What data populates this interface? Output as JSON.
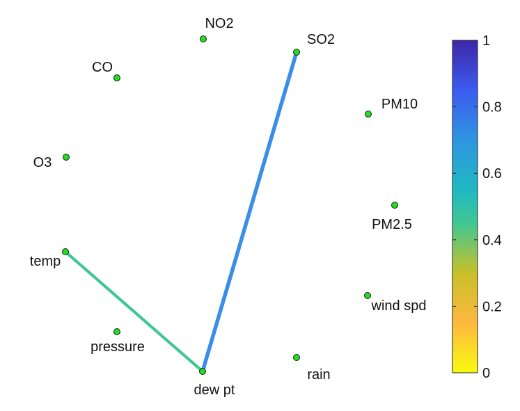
{
  "nodes": [
    {
      "id": "NO2",
      "label": "NO2"
    },
    {
      "id": "SO2",
      "label": "SO2"
    },
    {
      "id": "CO",
      "label": "CO"
    },
    {
      "id": "PM10",
      "label": "PM10"
    },
    {
      "id": "O3",
      "label": "O3"
    },
    {
      "id": "PM2.5",
      "label": "PM2.5"
    },
    {
      "id": "temp",
      "label": "temp"
    },
    {
      "id": "wind spd",
      "label": "wind spd"
    },
    {
      "id": "pressure",
      "label": "pressure"
    },
    {
      "id": "rain",
      "label": "rain"
    },
    {
      "id": "dew pt",
      "label": "dew pt"
    }
  ],
  "edges": [
    {
      "source": "temp",
      "target": "dew pt",
      "weight": 0.43,
      "color": "#3fc793"
    },
    {
      "source": "dew pt",
      "target": "SO2",
      "weight": 0.7,
      "color": "#3a8ee8"
    }
  ],
  "colors": {
    "node_fill": "#22dd22",
    "node_stroke": "#1a1a1a"
  },
  "colorbar": {
    "min": 0,
    "max": 1,
    "ticks": [
      "0",
      "0.2",
      "0.4",
      "0.6",
      "0.8",
      "1"
    ],
    "colormap": "parula-reversed"
  }
}
